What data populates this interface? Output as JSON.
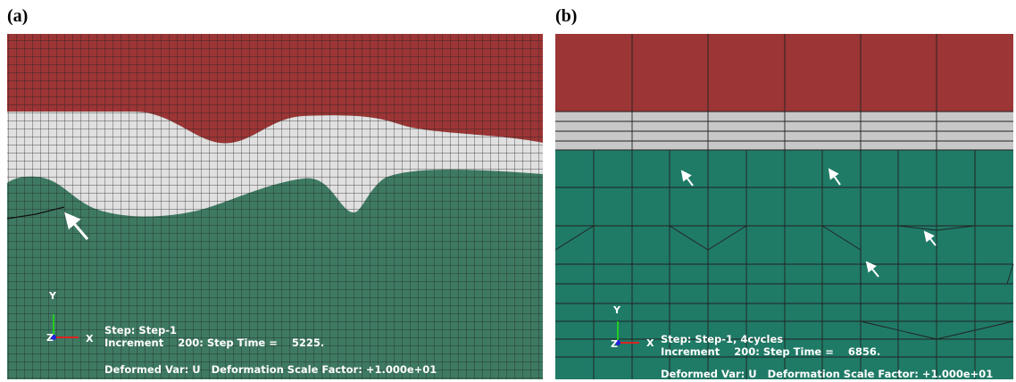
{
  "panels": [
    {
      "label": "(a)",
      "axes": {
        "y": "Y",
        "z": "Z",
        "x": "X"
      },
      "step": "Step: Step-1",
      "increment": "Increment    200: Step Time =    5225.",
      "deformed": "Deformed Var: U   Deformation Scale Factor: +1.000e+01"
    },
    {
      "label": "(b)",
      "axes": {
        "y": "Y",
        "z": "Z",
        "x": "X"
      },
      "step": "Step: Step-1, 4cycles",
      "increment": "Increment    200: Step Time =    6856.",
      "deformed": "Deformed Var: U   Deformation Scale Factor: +1.000e+01"
    }
  ]
}
